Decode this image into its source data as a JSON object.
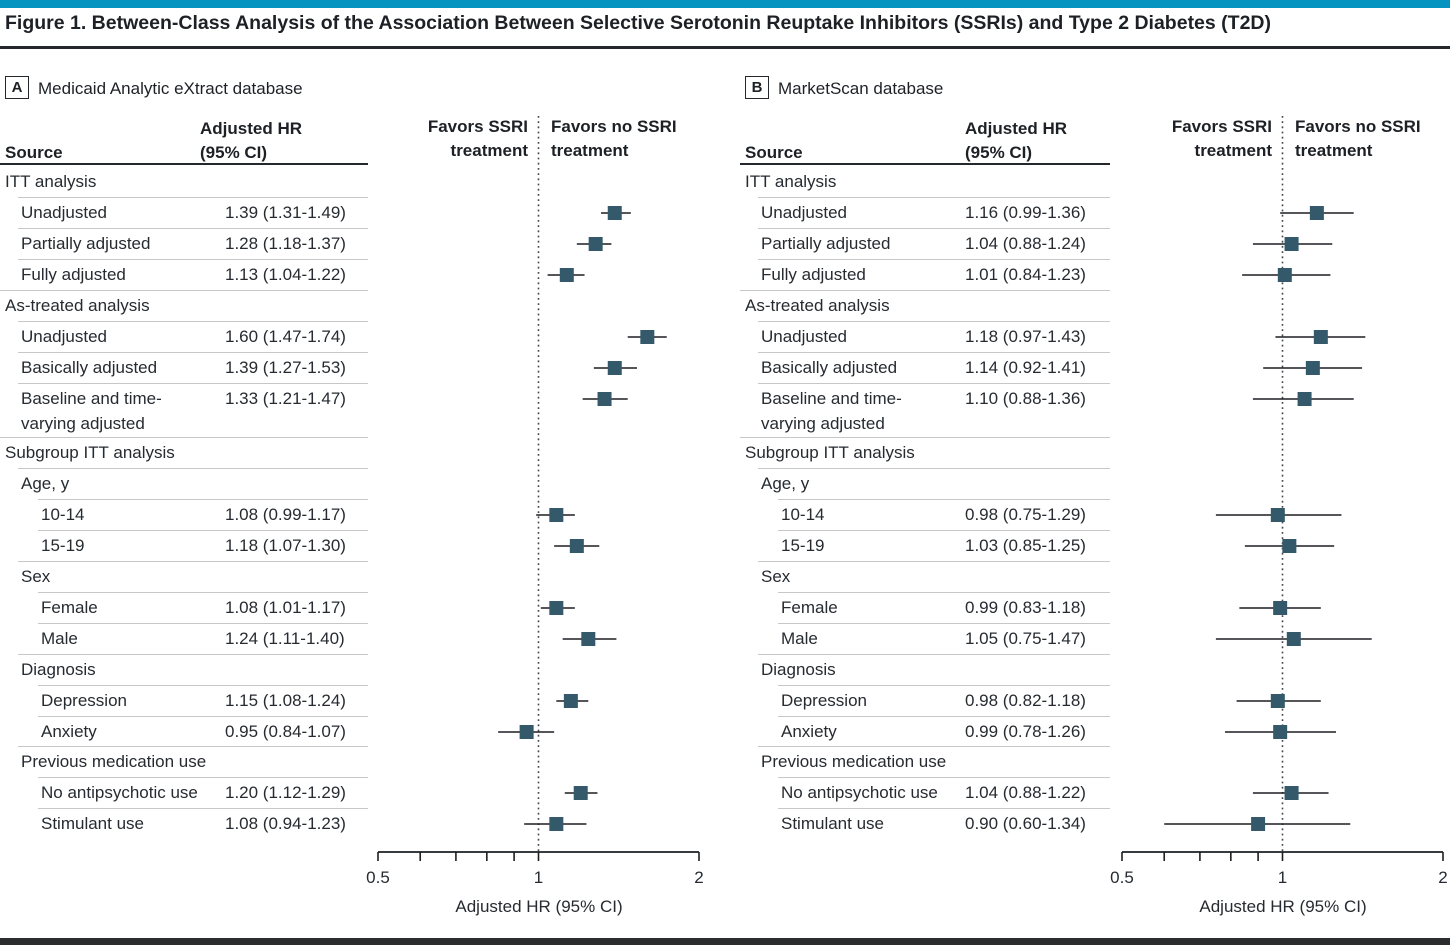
{
  "figure": {
    "title": "Figure 1. Between-Class Analysis of the Association Between Selective Serotonin Reuptake Inhibitors (SSRIs) and Type 2 Diabetes (T2D)"
  },
  "colors": {
    "accent_bar": "#0594c0",
    "bottom_bar": "#2b2c2e",
    "marker": "#34596a",
    "ci_line": "#1b1f23",
    "text": "#262b31",
    "light_rule": "#c5c8ca",
    "dark_rule": "#24282c",
    "reference_line": "#45494d"
  },
  "plot_labels": {
    "favors_left": "Favors SSRI\ntreatment",
    "favors_right": "Favors no SSRI\ntreatment",
    "axis_title": "Adjusted HR (95% CI)",
    "axis_ticks": [
      "0.5",
      "1",
      "2"
    ]
  },
  "panels": [
    {
      "label": "A",
      "title": "Medicaid Analytic eXtract database",
      "source_header": "Source",
      "hr_header": "Adjusted HR\n(95% CI)"
    },
    {
      "label": "B",
      "title": "MarketScan database",
      "source_header": "Source",
      "hr_header": "Adjusted HR\n(95% CI)"
    }
  ],
  "chart_data": [
    {
      "type": "scatter",
      "subtype": "forest-plot",
      "panel": "A",
      "title": "Medicaid Analytic eXtract database",
      "xlabel": "Adjusted HR (95% CI)",
      "xscale": "log",
      "xlim": [
        0.5,
        2
      ],
      "xticks": [
        0.5,
        1,
        2
      ],
      "minor_xticks": [
        0.6,
        0.7,
        0.8,
        0.9
      ],
      "reference_line": 1,
      "rows": [
        {
          "label": "ITT analysis",
          "indent": 0
        },
        {
          "label": "Unadjusted",
          "indent": 1,
          "text": "1.39 (1.31-1.49)",
          "hr": 1.39,
          "lo": 1.31,
          "hi": 1.49
        },
        {
          "label": "Partially adjusted",
          "indent": 1,
          "text": "1.28 (1.18-1.37)",
          "hr": 1.28,
          "lo": 1.18,
          "hi": 1.37
        },
        {
          "label": "Fully adjusted",
          "indent": 1,
          "text": "1.13 (1.04-1.22)",
          "hr": 1.13,
          "lo": 1.04,
          "hi": 1.22
        },
        {
          "label": "As-treated analysis",
          "indent": 0
        },
        {
          "label": "Unadjusted",
          "indent": 1,
          "text": "1.60 (1.47-1.74)",
          "hr": 1.6,
          "lo": 1.47,
          "hi": 1.74
        },
        {
          "label": "Basically adjusted",
          "indent": 1,
          "text": "1.39 (1.27-1.53)",
          "hr": 1.39,
          "lo": 1.27,
          "hi": 1.53
        },
        {
          "label": "Baseline and time-",
          "label2": "varying adjusted",
          "indent": 1,
          "text": "1.33 (1.21-1.47)",
          "hr": 1.33,
          "lo": 1.21,
          "hi": 1.47
        },
        {
          "label": "Subgroup ITT analysis",
          "indent": 0
        },
        {
          "label": "Age, y",
          "indent": 1
        },
        {
          "label": "10-14",
          "indent": 2,
          "text": "1.08 (0.99-1.17)",
          "hr": 1.08,
          "lo": 0.99,
          "hi": 1.17
        },
        {
          "label": "15-19",
          "indent": 2,
          "text": "1.18 (1.07-1.30)",
          "hr": 1.18,
          "lo": 1.07,
          "hi": 1.3
        },
        {
          "label": "Sex",
          "indent": 1
        },
        {
          "label": "Female",
          "indent": 2,
          "text": "1.08 (1.01-1.17)",
          "hr": 1.08,
          "lo": 1.01,
          "hi": 1.17
        },
        {
          "label": "Male",
          "indent": 2,
          "text": "1.24 (1.11-1.40)",
          "hr": 1.24,
          "lo": 1.11,
          "hi": 1.4
        },
        {
          "label": "Diagnosis",
          "indent": 1
        },
        {
          "label": "Depression",
          "indent": 2,
          "text": "1.15 (1.08-1.24)",
          "hr": 1.15,
          "lo": 1.08,
          "hi": 1.24
        },
        {
          "label": "Anxiety",
          "indent": 2,
          "text": "0.95 (0.84-1.07)",
          "hr": 0.95,
          "lo": 0.84,
          "hi": 1.07
        },
        {
          "label": "Previous medication use",
          "indent": 1
        },
        {
          "label": "No antipsychotic use",
          "indent": 2,
          "text": "1.20 (1.12-1.29)",
          "hr": 1.2,
          "lo": 1.12,
          "hi": 1.29
        },
        {
          "label": "Stimulant use",
          "indent": 2,
          "text": "1.08 (0.94-1.23)",
          "hr": 1.08,
          "lo": 0.94,
          "hi": 1.23
        }
      ]
    },
    {
      "type": "scatter",
      "subtype": "forest-plot",
      "panel": "B",
      "title": "MarketScan database",
      "xlabel": "Adjusted HR (95% CI)",
      "xscale": "log",
      "xlim": [
        0.5,
        2
      ],
      "xticks": [
        0.5,
        1,
        2
      ],
      "minor_xticks": [
        0.6,
        0.7,
        0.8,
        0.9
      ],
      "reference_line": 1,
      "rows": [
        {
          "label": "ITT analysis",
          "indent": 0
        },
        {
          "label": "Unadjusted",
          "indent": 1,
          "text": "1.16 (0.99-1.36)",
          "hr": 1.16,
          "lo": 0.99,
          "hi": 1.36
        },
        {
          "label": "Partially adjusted",
          "indent": 1,
          "text": "1.04 (0.88-1.24)",
          "hr": 1.04,
          "lo": 0.88,
          "hi": 1.24
        },
        {
          "label": "Fully adjusted",
          "indent": 1,
          "text": "1.01 (0.84-1.23)",
          "hr": 1.01,
          "lo": 0.84,
          "hi": 1.23
        },
        {
          "label": "As-treated analysis",
          "indent": 0
        },
        {
          "label": "Unadjusted",
          "indent": 1,
          "text": "1.18 (0.97-1.43)",
          "hr": 1.18,
          "lo": 0.97,
          "hi": 1.43
        },
        {
          "label": "Basically adjusted",
          "indent": 1,
          "text": "1.14 (0.92-1.41)",
          "hr": 1.14,
          "lo": 0.92,
          "hi": 1.41
        },
        {
          "label": "Baseline and time-",
          "label2": "varying adjusted",
          "indent": 1,
          "text": "1.10 (0.88-1.36)",
          "hr": 1.1,
          "lo": 0.88,
          "hi": 1.36
        },
        {
          "label": "Subgroup ITT analysis",
          "indent": 0
        },
        {
          "label": "Age, y",
          "indent": 1
        },
        {
          "label": "10-14",
          "indent": 2,
          "text": "0.98 (0.75-1.29)",
          "hr": 0.98,
          "lo": 0.75,
          "hi": 1.29
        },
        {
          "label": "15-19",
          "indent": 2,
          "text": "1.03 (0.85-1.25)",
          "hr": 1.03,
          "lo": 0.85,
          "hi": 1.25
        },
        {
          "label": "Sex",
          "indent": 1
        },
        {
          "label": "Female",
          "indent": 2,
          "text": "0.99 (0.83-1.18)",
          "hr": 0.99,
          "lo": 0.83,
          "hi": 1.18
        },
        {
          "label": "Male",
          "indent": 2,
          "text": "1.05 (0.75-1.47)",
          "hr": 1.05,
          "lo": 0.75,
          "hi": 1.47
        },
        {
          "label": "Diagnosis",
          "indent": 1
        },
        {
          "label": "Depression",
          "indent": 2,
          "text": "0.98 (0.82-1.18)",
          "hr": 0.98,
          "lo": 0.82,
          "hi": 1.18
        },
        {
          "label": "Anxiety",
          "indent": 2,
          "text": "0.99 (0.78-1.26)",
          "hr": 0.99,
          "lo": 0.78,
          "hi": 1.26
        },
        {
          "label": "Previous medication use",
          "indent": 1
        },
        {
          "label": "No antipsychotic use",
          "indent": 2,
          "text": "1.04 (0.88-1.22)",
          "hr": 1.04,
          "lo": 0.88,
          "hi": 1.22
        },
        {
          "label": "Stimulant use",
          "indent": 2,
          "text": "0.90 (0.60-1.34)",
          "hr": 0.9,
          "lo": 0.6,
          "hi": 1.34
        }
      ]
    }
  ]
}
